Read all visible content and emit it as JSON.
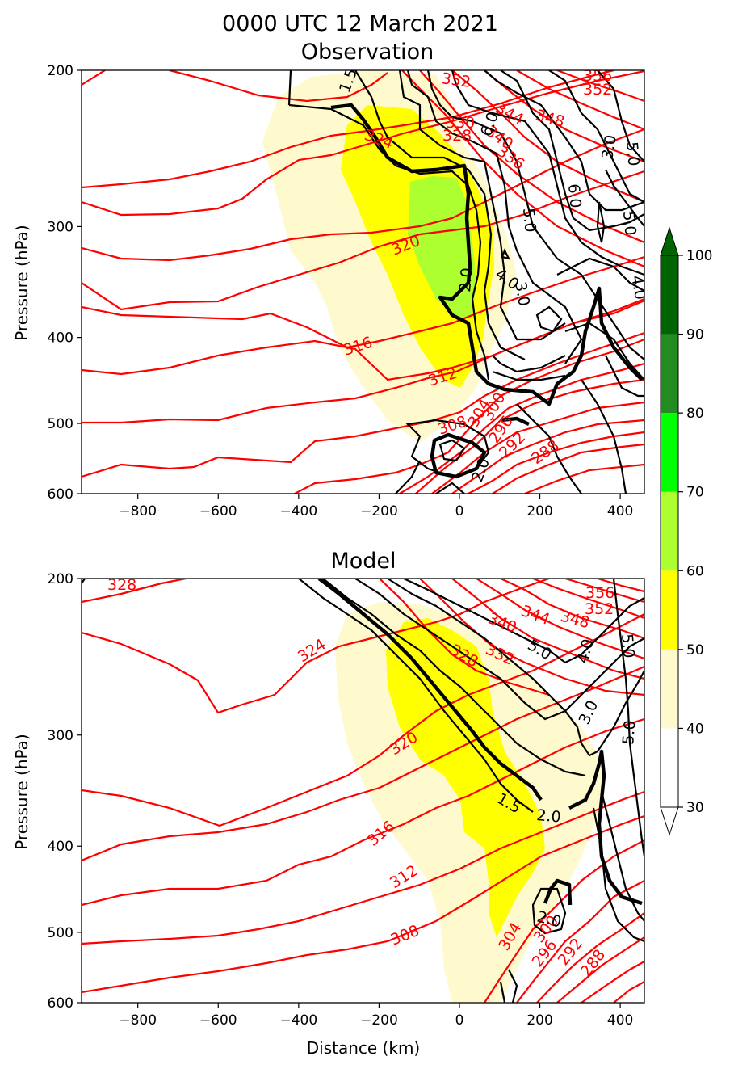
{
  "figure": {
    "title_line1": "0000 UTC 12 March 2021",
    "title_line2": "Observation",
    "bottom_title": "Model"
  },
  "chart_data": [
    {
      "type": "heatmap",
      "title": "Observation",
      "xlabel": "",
      "ylabel": "Pressure (hPa)",
      "xlim": [
        -940,
        460
      ],
      "ylim": [
        600,
        200
      ],
      "y_scale": "log",
      "x_ticks": [
        -800,
        -600,
        -400,
        -200,
        0,
        200,
        400
      ],
      "x_tick_labels": [
        "−800",
        "−600",
        "−400",
        "−200",
        "0",
        "200",
        "400"
      ],
      "y_ticks": [
        200,
        300,
        400,
        500,
        600
      ],
      "red_contour_labels": [
        "352",
        "356",
        "352",
        "344",
        "348",
        "340",
        "330",
        "328",
        "336",
        "324",
        "320",
        "316",
        "312",
        "304",
        "300",
        "308",
        "296",
        "292",
        "288"
      ],
      "black_contour_labels": [
        "1.5",
        "6.0",
        "3.0",
        "5.0",
        "6.0",
        "5.0",
        "5.0",
        "2.0",
        "4.0",
        "3.0",
        "4.0",
        "2.0"
      ]
    },
    {
      "type": "heatmap",
      "title": "Model",
      "xlabel": "Distance (km)",
      "ylabel": "Pressure (hPa)",
      "xlim": [
        -940,
        460
      ],
      "ylim": [
        600,
        200
      ],
      "y_scale": "log",
      "x_ticks": [
        -800,
        -600,
        -400,
        -200,
        0,
        200,
        400
      ],
      "x_tick_labels": [
        "−800",
        "−600",
        "−400",
        "−200",
        "0",
        "200",
        "400"
      ],
      "y_ticks": [
        200,
        300,
        400,
        500,
        600
      ],
      "red_contour_labels": [
        "328",
        "324",
        "356",
        "352",
        "344",
        "348",
        "340",
        "332",
        "328",
        "320",
        "316",
        "312",
        "308",
        "304",
        "300",
        "296",
        "292",
        "288"
      ],
      "black_contour_labels": [
        "5.0",
        "4.0",
        "5.0",
        "3.0",
        "5.0",
        "1.5",
        "2.0",
        "2.0"
      ]
    }
  ],
  "colorbar": {
    "ticks": [
      "100",
      "90",
      "80",
      "70",
      "60",
      "50",
      "40",
      "30"
    ],
    "levels": [
      30,
      40,
      50,
      60,
      70,
      80,
      90,
      100
    ],
    "colors": [
      "#ffffff",
      "#fffacd",
      "#ffff00",
      "#adff2f",
      "#00ff00",
      "#228b22",
      "#006400"
    ],
    "extend_max_color": "#006400",
    "extend_min_color": "#ffffff"
  },
  "colors": {
    "theta": "#ff0000",
    "pv": "#000000",
    "shade_40": "#fffacd",
    "shade_50": "#ffff00",
    "shade_60": "#adff2f"
  }
}
